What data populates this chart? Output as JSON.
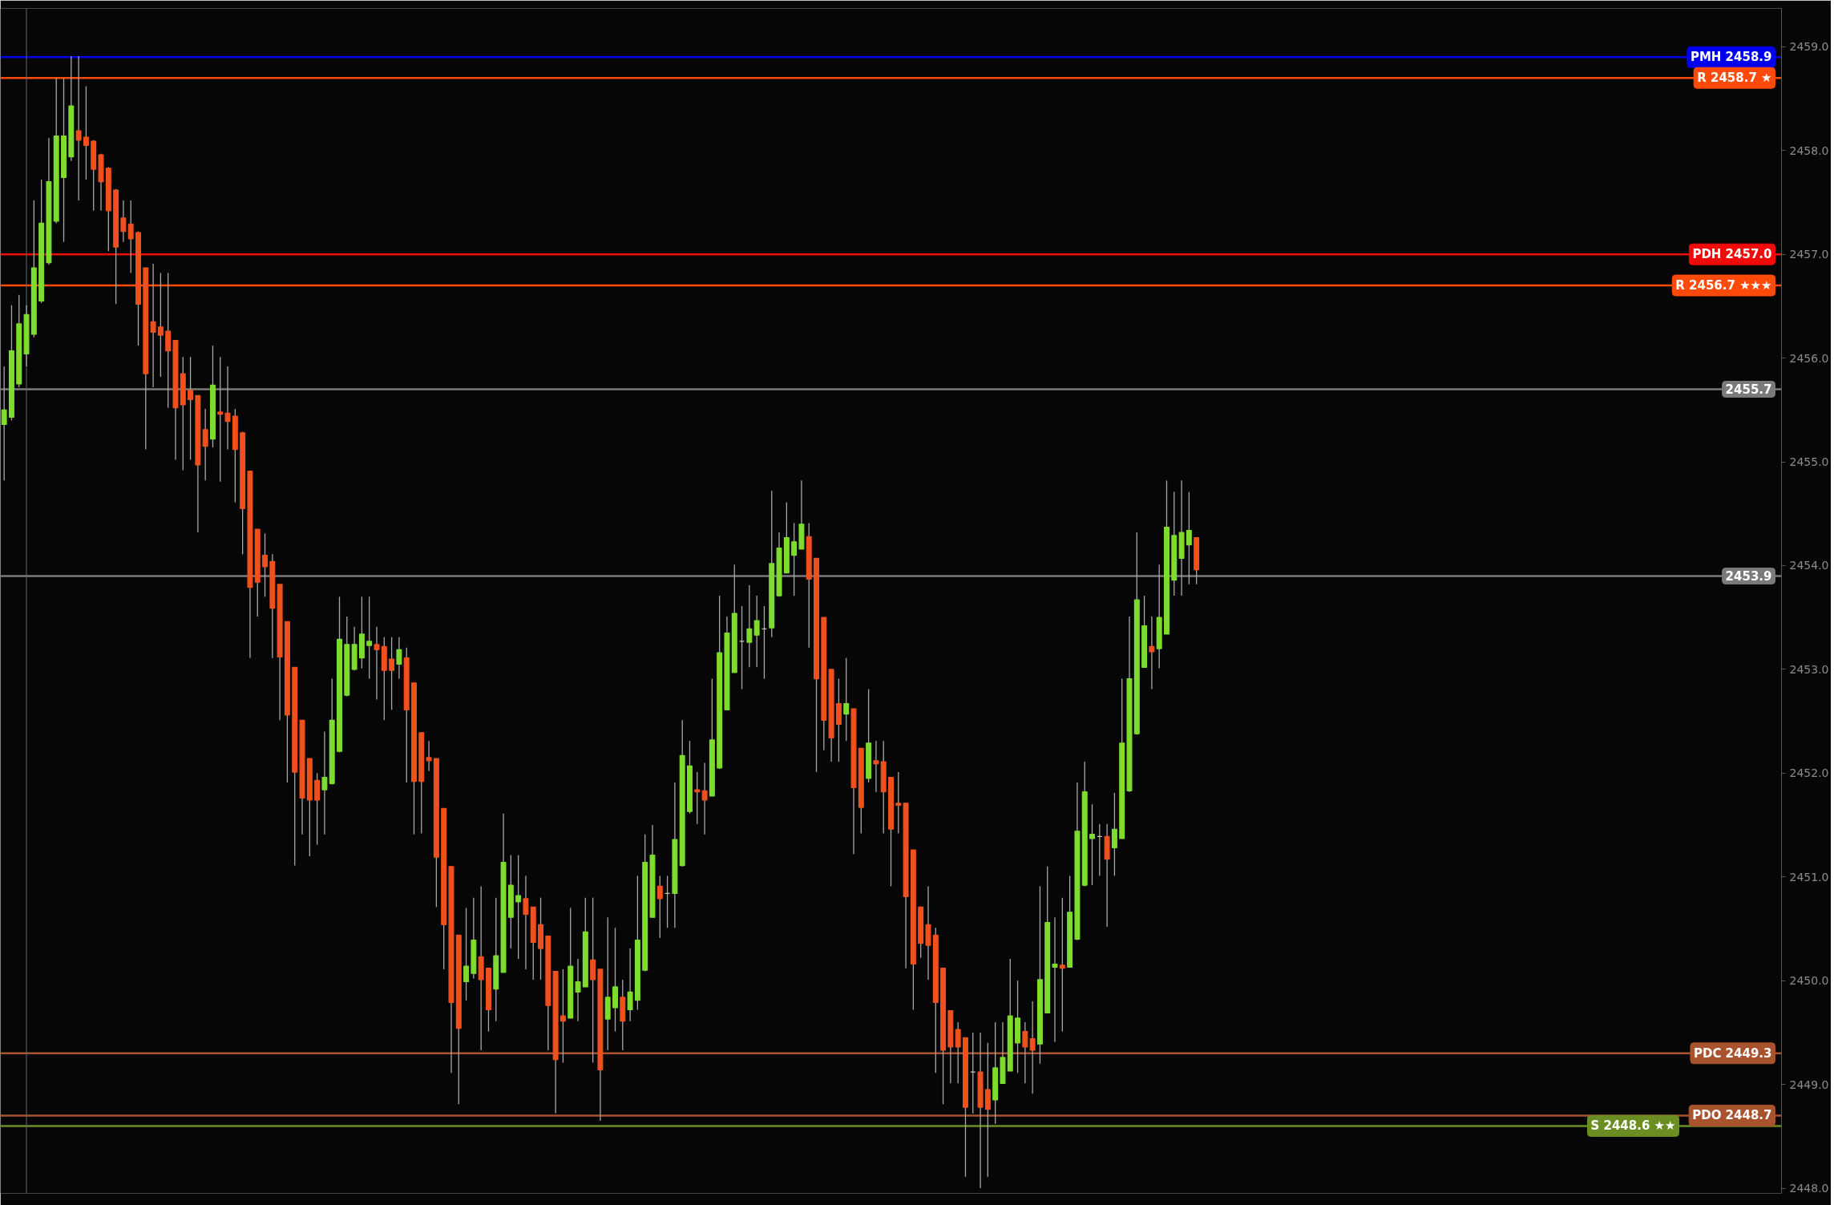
{
  "chart_data": {
    "type": "candlestick",
    "categories": [
      null,
      null,
      null,
      null,
      null,
      null,
      null,
      null,
      null,
      null,
      null,
      null,
      null,
      null,
      null,
      null,
      null,
      null,
      null,
      null,
      null,
      null,
      null,
      null,
      null,
      null,
      null,
      null,
      null,
      null,
      null,
      null,
      null,
      null,
      null,
      null,
      null,
      null,
      null,
      null,
      null,
      null,
      null,
      null,
      null,
      null,
      null,
      null,
      null,
      null,
      null,
      null,
      null,
      null,
      null,
      null,
      null,
      null,
      null,
      null,
      null,
      null,
      null,
      null,
      null,
      null,
      null,
      null,
      null,
      null,
      null,
      null,
      null,
      null,
      null,
      null,
      null,
      null,
      null,
      null,
      null,
      null,
      null,
      null,
      null,
      null,
      null,
      null,
      null,
      null,
      null,
      null,
      null,
      null,
      null,
      null,
      null,
      null,
      null,
      null,
      null,
      null,
      null,
      null,
      null,
      null,
      null,
      null,
      null,
      null,
      null,
      null,
      null,
      null,
      null,
      null,
      null,
      null,
      null,
      null,
      null,
      null,
      null,
      null,
      null,
      null,
      null,
      null,
      null,
      null,
      null,
      null,
      null,
      null,
      null,
      null,
      null,
      null,
      null,
      null,
      null,
      null,
      null,
      null,
      null,
      null,
      null,
      null,
      null,
      null,
      null,
      null,
      null,
      null,
      null,
      null,
      null,
      null,
      null,
      null,
      null,
      null,
      null,
      null,
      null,
      null,
      null,
      null,
      null,
      null,
      null,
      null,
      null,
      null,
      null,
      null,
      null,
      null,
      null,
      null,
      null,
      null,
      null,
      null,
      null,
      null,
      null,
      null,
      null,
      null,
      null,
      null,
      null,
      null,
      null,
      null,
      null,
      null,
      null,
      null,
      null,
      null,
      null,
      null,
      null,
      null,
      null,
      null,
      null,
      null,
      null,
      null,
      null,
      null,
      null,
      null,
      null,
      null,
      null,
      null,
      null,
      null,
      null,
      null,
      null,
      null,
      null,
      null,
      null,
      null,
      null,
      null,
      null,
      null,
      null,
      null,
      null,
      null,
      null
    ],
    "ohlc": [
      [
        2455.36,
        2455.92,
        2454.82,
        2455.5
      ],
      [
        2455.43,
        2456.51,
        2455.4,
        2456.07
      ],
      [
        2455.75,
        2456.61,
        2455.72,
        2456.33
      ],
      [
        2456.04,
        2456.51,
        2455.92,
        2456.42
      ],
      [
        2456.23,
        2457.52,
        2456.2,
        2456.87
      ],
      [
        2456.55,
        2457.72,
        2456.53,
        2457.3
      ],
      [
        2456.92,
        2458.12,
        2456.9,
        2457.7
      ],
      [
        2457.32,
        2458.7,
        2457.3,
        2458.14
      ],
      [
        2457.74,
        2458.7,
        2457.12,
        2458.14
      ],
      [
        2457.94,
        2458.91,
        2457.9,
        2458.43
      ],
      [
        2458.19,
        2458.91,
        2457.52,
        2458.1
      ],
      [
        2458.13,
        2458.62,
        2457.72,
        2458.05
      ],
      [
        2458.09,
        2458.1,
        2457.42,
        2457.82
      ],
      [
        2457.96,
        2457.97,
        2457.42,
        2457.7
      ],
      [
        2457.83,
        2457.84,
        2457.03,
        2457.42
      ],
      [
        2457.62,
        2457.63,
        2456.52,
        2457.07
      ],
      [
        2457.35,
        2457.52,
        2457.12,
        2457.22
      ],
      [
        2457.29,
        2457.52,
        2456.82,
        2457.15
      ],
      [
        2457.21,
        2457.22,
        2456.12,
        2456.52
      ],
      [
        2456.87,
        2456.87,
        2455.12,
        2455.85
      ],
      [
        2456.35,
        2456.91,
        2455.72,
        2456.25
      ],
      [
        2456.3,
        2456.82,
        2455.82,
        2456.22
      ],
      [
        2456.26,
        2456.82,
        2455.52,
        2456.07
      ],
      [
        2456.17,
        2456.17,
        2455.02,
        2455.52
      ],
      [
        2455.85,
        2456.01,
        2454.92,
        2455.55
      ],
      [
        2455.69,
        2456.01,
        2455.02,
        2455.6
      ],
      [
        2455.64,
        2455.64,
        2454.32,
        2454.97
      ],
      [
        2455.31,
        2455.51,
        2454.82,
        2455.15
      ],
      [
        2455.22,
        2456.12,
        2455.14,
        2455.74
      ],
      [
        2455.48,
        2456.01,
        2454.81,
        2455.46
      ],
      [
        2455.47,
        2455.92,
        2455.12,
        2455.39
      ],
      [
        2455.44,
        2455.51,
        2454.61,
        2455.12
      ],
      [
        2455.28,
        2455.29,
        2454.11,
        2454.55
      ],
      [
        2454.91,
        2454.91,
        2453.11,
        2453.79
      ],
      [
        2454.35,
        2454.35,
        2453.51,
        2453.84
      ],
      [
        2454.1,
        2454.31,
        2453.7,
        2453.99
      ],
      [
        2454.04,
        2454.11,
        2453.11,
        2453.59
      ],
      [
        2453.82,
        2453.82,
        2452.51,
        2453.12
      ],
      [
        2453.46,
        2453.46,
        2451.91,
        2452.56
      ],
      [
        2453.02,
        2453.02,
        2451.11,
        2452.01
      ],
      [
        2452.51,
        2452.51,
        2451.41,
        2451.76
      ],
      [
        2452.14,
        2452.14,
        2451.2,
        2451.74
      ],
      [
        2451.93,
        2452.0,
        2451.31,
        2451.74
      ],
      [
        2451.84,
        2452.4,
        2451.41,
        2451.96
      ],
      [
        2451.9,
        2452.91,
        2451.89,
        2452.51
      ],
      [
        2452.21,
        2453.7,
        2452.2,
        2453.29
      ],
      [
        2452.75,
        2453.51,
        2452.74,
        2453.24
      ],
      [
        2453.0,
        2453.41,
        2452.99,
        2453.24
      ],
      [
        2453.11,
        2453.7,
        2453.01,
        2453.34
      ],
      [
        2453.23,
        2453.7,
        2452.91,
        2453.27
      ],
      [
        2453.24,
        2453.41,
        2452.71,
        2453.19
      ],
      [
        2453.22,
        2453.31,
        2452.51,
        2452.99
      ],
      [
        2453.1,
        2453.31,
        2452.61,
        2452.99
      ],
      [
        2453.05,
        2453.31,
        2452.91,
        2453.19
      ],
      [
        2453.11,
        2453.21,
        2451.91,
        2452.61
      ],
      [
        2452.87,
        2452.87,
        2451.41,
        2451.92
      ],
      [
        2452.39,
        2452.39,
        2451.42,
        2451.92
      ],
      [
        2452.15,
        2452.31,
        2452.02,
        2452.12
      ],
      [
        2452.14,
        2452.14,
        2450.71,
        2451.19
      ],
      [
        2451.66,
        2451.66,
        2450.11,
        2450.54
      ],
      [
        2451.1,
        2451.1,
        2449.11,
        2449.79
      ],
      [
        2450.44,
        2450.44,
        2448.81,
        2449.54
      ],
      [
        2449.99,
        2450.7,
        2449.81,
        2450.14
      ],
      [
        2450.07,
        2450.8,
        2450.02,
        2450.39
      ],
      [
        2450.23,
        2450.91,
        2449.33,
        2450.01
      ],
      [
        2450.12,
        2450.12,
        2449.51,
        2449.72
      ],
      [
        2449.92,
        2450.8,
        2449.61,
        2450.24
      ],
      [
        2450.08,
        2451.61,
        2450.08,
        2451.14
      ],
      [
        2450.61,
        2451.21,
        2450.31,
        2450.92
      ],
      [
        2450.76,
        2451.21,
        2450.21,
        2450.82
      ],
      [
        2450.79,
        2451.01,
        2450.11,
        2450.64
      ],
      [
        2450.71,
        2450.71,
        2450.01,
        2450.37
      ],
      [
        2450.54,
        2450.8,
        2450.01,
        2450.31
      ],
      [
        2450.43,
        2450.43,
        2449.33,
        2449.76
      ],
      [
        2450.09,
        2450.09,
        2448.72,
        2449.24
      ],
      [
        2449.66,
        2450.11,
        2449.21,
        2449.61
      ],
      [
        2449.64,
        2450.7,
        2449.64,
        2450.14
      ],
      [
        2449.89,
        2450.21,
        2449.61,
        2449.99
      ],
      [
        2449.94,
        2450.8,
        2449.94,
        2450.47
      ],
      [
        2450.2,
        2450.8,
        2449.21,
        2450.01
      ],
      [
        2450.11,
        2450.11,
        2448.65,
        2449.14
      ],
      [
        2449.63,
        2450.61,
        2449.33,
        2449.84
      ],
      [
        2449.74,
        2450.51,
        2449.51,
        2449.94
      ],
      [
        2449.84,
        2450.01,
        2449.33,
        2449.61
      ],
      [
        2449.72,
        2450.31,
        2449.61,
        2449.89
      ],
      [
        2449.81,
        2451.01,
        2449.72,
        2450.39
      ],
      [
        2450.1,
        2451.41,
        2450.09,
        2451.14
      ],
      [
        2450.61,
        2451.5,
        2450.61,
        2451.21
      ],
      [
        2450.91,
        2451.01,
        2450.41,
        2450.79
      ],
      [
        2450.84,
        2451.01,
        2450.51,
        2450.84
      ],
      [
        2450.84,
        2451.91,
        2450.51,
        2451.36
      ],
      [
        2451.11,
        2452.51,
        2451.1,
        2452.17
      ],
      [
        2451.63,
        2452.31,
        2451.61,
        2452.07
      ],
      [
        2451.84,
        2452.01,
        2451.51,
        2451.82
      ],
      [
        2451.83,
        2452.1,
        2451.41,
        2451.74
      ],
      [
        2451.78,
        2452.91,
        2451.78,
        2452.32
      ],
      [
        2452.05,
        2453.71,
        2452.04,
        2453.16
      ],
      [
        2452.61,
        2453.51,
        2452.61,
        2453.35
      ],
      [
        2452.97,
        2454.01,
        2452.97,
        2453.54
      ],
      [
        2453.27,
        2453.61,
        2452.81,
        2453.27
      ],
      [
        2453.26,
        2453.81,
        2453.02,
        2453.39
      ],
      [
        2453.33,
        2453.71,
        2453.02,
        2453.47
      ],
      [
        2453.39,
        2453.61,
        2452.91,
        2453.39
      ],
      [
        2453.4,
        2454.72,
        2453.31,
        2454.02
      ],
      [
        2453.71,
        2454.32,
        2453.7,
        2454.17
      ],
      [
        2453.93,
        2454.61,
        2453.93,
        2454.27
      ],
      [
        2454.1,
        2454.41,
        2453.71,
        2454.23
      ],
      [
        2454.16,
        2454.82,
        2454.16,
        2454.4
      ],
      [
        2454.28,
        2454.41,
        2453.21,
        2453.87
      ],
      [
        2454.07,
        2454.07,
        2452.01,
        2452.91
      ],
      [
        2453.5,
        2453.5,
        2452.22,
        2452.51
      ],
      [
        2453.0,
        2453.0,
        2452.11,
        2452.34
      ],
      [
        2452.67,
        2452.91,
        2452.11,
        2452.47
      ],
      [
        2452.57,
        2453.11,
        2452.31,
        2452.67
      ],
      [
        2452.62,
        2452.62,
        2451.22,
        2451.86
      ],
      [
        2452.24,
        2452.24,
        2451.42,
        2451.67
      ],
      [
        2451.95,
        2452.81,
        2451.91,
        2452.29
      ],
      [
        2452.12,
        2452.31,
        2451.82,
        2452.09
      ],
      [
        2452.11,
        2452.31,
        2451.42,
        2451.82
      ],
      [
        2451.96,
        2451.96,
        2450.91,
        2451.46
      ],
      [
        2451.71,
        2452.01,
        2451.42,
        2451.69
      ],
      [
        2451.71,
        2451.71,
        2450.12,
        2450.81
      ],
      [
        2451.26,
        2451.26,
        2449.72,
        2450.16
      ],
      [
        2450.71,
        2450.71,
        2450.22,
        2450.36
      ],
      [
        2450.54,
        2450.91,
        2450.01,
        2450.34
      ],
      [
        2450.44,
        2450.51,
        2449.11,
        2449.79
      ],
      [
        2450.12,
        2450.12,
        2448.81,
        2449.33
      ],
      [
        2449.71,
        2449.71,
        2449.01,
        2449.36
      ],
      [
        2449.53,
        2449.6,
        2449.01,
        2449.36
      ],
      [
        2449.45,
        2449.45,
        2448.11,
        2448.78
      ],
      [
        2449.12,
        2449.5,
        2448.72,
        2449.12
      ],
      [
        2449.12,
        2449.5,
        2448.0,
        2448.78
      ],
      [
        2448.95,
        2449.4,
        2448.11,
        2448.76
      ],
      [
        2448.85,
        2449.6,
        2448.62,
        2449.16
      ],
      [
        2449.01,
        2449.6,
        2449.01,
        2449.26
      ],
      [
        2449.13,
        2450.21,
        2449.13,
        2449.66
      ],
      [
        2449.4,
        2450.0,
        2449.11,
        2449.64
      ],
      [
        2449.51,
        2449.6,
        2449.01,
        2449.36
      ],
      [
        2449.44,
        2449.8,
        2448.91,
        2449.33
      ],
      [
        2449.39,
        2450.91,
        2449.2,
        2450.01
      ],
      [
        2449.69,
        2451.1,
        2449.69,
        2450.56
      ],
      [
        2450.13,
        2450.61,
        2449.41,
        2450.16
      ],
      [
        2450.15,
        2450.8,
        2449.51,
        2450.12
      ],
      [
        2450.13,
        2451.01,
        2450.13,
        2450.66
      ],
      [
        2450.4,
        2451.91,
        2450.39,
        2451.44
      ],
      [
        2450.92,
        2452.11,
        2450.91,
        2451.82
      ],
      [
        2451.37,
        2451.7,
        2450.92,
        2451.41
      ],
      [
        2451.39,
        2451.51,
        2451.01,
        2451.39
      ],
      [
        2451.39,
        2451.51,
        2450.52,
        2451.17
      ],
      [
        2451.28,
        2451.81,
        2451.01,
        2451.46
      ],
      [
        2451.37,
        2452.91,
        2451.37,
        2452.29
      ],
      [
        2451.83,
        2453.51,
        2451.82,
        2452.91
      ],
      [
        2452.38,
        2454.32,
        2452.37,
        2453.67
      ],
      [
        2453.02,
        2453.71,
        2453.02,
        2453.42
      ],
      [
        2453.22,
        2453.51,
        2452.81,
        2453.17
      ],
      [
        2453.2,
        2454.01,
        2453.01,
        2453.5
      ],
      [
        2453.34,
        2454.82,
        2453.34,
        2454.37
      ],
      [
        2453.86,
        2454.71,
        2453.71,
        2454.29
      ],
      [
        2454.07,
        2454.82,
        2453.71,
        2454.32
      ],
      [
        2454.2,
        2454.71,
        2453.82,
        2454.34
      ],
      [
        2454.27,
        2454.27,
        2453.82,
        2453.96
      ],
      null,
      null,
      null,
      null,
      null,
      null,
      null,
      null,
      null,
      null,
      null,
      null,
      null,
      null,
      null,
      null,
      null,
      null,
      null,
      null,
      null,
      null,
      null,
      null,
      null,
      null,
      null,
      null,
      null,
      null,
      null,
      null,
      null,
      null,
      null,
      null,
      null,
      null,
      null,
      null,
      null,
      null,
      null,
      null,
      null,
      null,
      null,
      null,
      null,
      null,
      null,
      null,
      null,
      null,
      null,
      null,
      null,
      null,
      null,
      null,
      null,
      null,
      null,
      null,
      null,
      null,
      null,
      null,
      null,
      null,
      null,
      null,
      null,
      null,
      null,
      null,
      null,
      null
    ],
    "colors": [
      "#7ddc2e",
      "#7ddc2e",
      "#7ddc2e",
      "#7ddc2e",
      "#7ddc2e",
      "#7ddc2e",
      "#7ddc2e",
      "#7ddc2e",
      "#7ddc2e",
      "#7ddc2e",
      "#f0501e",
      "#f0501e",
      "#f0501e",
      "#f0501e",
      "#f0501e",
      "#f0501e",
      "#f0501e",
      "#f0501e",
      "#f0501e",
      "#f0501e",
      "#f0501e",
      "#f0501e",
      "#f0501e",
      "#f0501e",
      "#f0501e",
      "#f0501e",
      "#f0501e",
      "#f0501e",
      "#7ddc2e",
      "#f0501e",
      "#f0501e",
      "#f0501e",
      "#f0501e",
      "#f0501e",
      "#f0501e",
      "#f0501e",
      "#f0501e",
      "#f0501e",
      "#f0501e",
      "#f0501e",
      "#f0501e",
      "#f0501e",
      "#f0501e",
      "#7ddc2e",
      "#7ddc2e",
      "#7ddc2e",
      "#7ddc2e",
      "#7ddc2e",
      "#7ddc2e",
      "#7ddc2e",
      "#f0501e",
      "#f0501e",
      "#f0501e",
      "#7ddc2e",
      "#f0501e",
      "#f0501e",
      "#f0501e",
      "#f0501e",
      "#f0501e",
      "#f0501e",
      "#f0501e",
      "#f0501e",
      "#7ddc2e",
      "#7ddc2e",
      "#f0501e",
      "#f0501e",
      "#7ddc2e",
      "#7ddc2e",
      "#7ddc2e",
      "#7ddc2e",
      "#f0501e",
      "#f0501e",
      "#f0501e",
      "#f0501e",
      "#f0501e",
      "#f0501e",
      "#7ddc2e",
      "#7ddc2e",
      "#7ddc2e",
      "#f0501e",
      "#f0501e",
      "#7ddc2e",
      "#7ddc2e",
      "#f0501e",
      "#7ddc2e",
      "#7ddc2e",
      "#7ddc2e",
      "#7ddc2e",
      "#f0501e",
      "#c8c8c8",
      "#7ddc2e",
      "#7ddc2e",
      "#7ddc2e",
      "#f0501e",
      "#f0501e",
      "#7ddc2e",
      "#7ddc2e",
      "#7ddc2e",
      "#7ddc2e",
      "#c8c8c8",
      "#7ddc2e",
      "#7ddc2e",
      "#c8c8c8",
      "#7ddc2e",
      "#7ddc2e",
      "#7ddc2e",
      "#7ddc2e",
      "#7ddc2e",
      "#f0501e",
      "#f0501e",
      "#f0501e",
      "#f0501e",
      "#f0501e",
      "#7ddc2e",
      "#f0501e",
      "#f0501e",
      "#7ddc2e",
      "#f0501e",
      "#f0501e",
      "#f0501e",
      "#f0501e",
      "#f0501e",
      "#f0501e",
      "#f0501e",
      "#f0501e",
      "#f0501e",
      "#f0501e",
      "#f0501e",
      "#f0501e",
      "#f0501e",
      "#c8c8c8",
      "#f0501e",
      "#f0501e",
      "#7ddc2e",
      "#7ddc2e",
      "#7ddc2e",
      "#7ddc2e",
      "#f0501e",
      "#f0501e",
      "#7ddc2e",
      "#7ddc2e",
      "#7ddc2e",
      "#f0501e",
      "#7ddc2e",
      "#7ddc2e",
      "#7ddc2e",
      "#7ddc2e",
      "#c8c8c8",
      "#f0501e",
      "#7ddc2e",
      "#7ddc2e",
      "#7ddc2e",
      "#7ddc2e",
      "#7ddc2e",
      "#f0501e",
      "#7ddc2e",
      "#7ddc2e",
      "#7ddc2e",
      "#7ddc2e",
      "#7ddc2e",
      "#f0501e",
      null,
      null,
      null,
      null,
      null,
      null,
      null,
      null,
      null,
      null,
      null,
      null,
      null,
      null,
      null,
      null,
      null,
      null,
      null,
      null,
      null,
      null,
      null,
      null,
      null,
      null,
      null,
      null,
      null,
      null,
      null,
      null,
      null,
      null,
      null,
      null,
      null,
      null,
      null,
      null,
      null,
      null,
      null,
      null,
      null,
      null,
      null,
      null,
      null,
      null,
      null,
      null,
      null,
      null,
      null,
      null,
      null,
      null,
      null,
      null,
      null,
      null,
      null,
      null,
      null,
      null,
      null,
      null,
      null,
      null,
      null,
      null,
      null,
      null,
      null,
      null,
      null,
      null
    ],
    "ylim": [
      2447.95,
      2459.37
    ],
    "yticks": [
      {
        "value": 2448,
        "label": "2448.0"
      },
      {
        "value": 2449,
        "label": "2449.0"
      },
      {
        "value": 2450,
        "label": "2450.0"
      },
      {
        "value": 2451,
        "label": "2451.0"
      },
      {
        "value": 2452,
        "label": "2452.0"
      },
      {
        "value": 2453,
        "label": "2453.0"
      },
      {
        "value": 2454,
        "label": "2454.0"
      },
      {
        "value": 2455,
        "label": "2455.0"
      },
      {
        "value": 2456,
        "label": "2456.0"
      },
      {
        "value": 2457,
        "label": "2457.0"
      },
      {
        "value": 2458,
        "label": "2458.0"
      },
      {
        "value": 2459,
        "label": "2459.0"
      }
    ],
    "ref_lines": [
      {
        "axis": "y",
        "value": 2458.9,
        "label": "PMH 2458.9",
        "color": "#0000ee"
      },
      {
        "axis": "y",
        "value": 2458.7,
        "label": "R 2458.7 ★",
        "color": "#ff4a0a"
      },
      {
        "axis": "y",
        "value": 2457.0,
        "label": "PDH 2457.0",
        "color": "#f00a0a"
      },
      {
        "axis": "y",
        "value": 2456.7,
        "label": "R 2456.7 ★★★",
        "color": "#ff4a0a"
      },
      {
        "axis": "y",
        "value": 2455.7,
        "label": "2455.7",
        "color": "#7a7a7a"
      },
      {
        "axis": "y",
        "value": 2453.9,
        "label": "2453.9",
        "color": "#7a7a7a"
      },
      {
        "axis": "y",
        "value": 2449.3,
        "label": "PDC 2449.3",
        "color": "#a9532e"
      },
      {
        "axis": "y",
        "value": 2448.7,
        "label": "PDO 2448.7",
        "color": "#a9532e"
      },
      {
        "axis": "y",
        "value": 2448.6,
        "label": "S 2448.6 ★★",
        "color": "#6b8e23"
      }
    ]
  }
}
